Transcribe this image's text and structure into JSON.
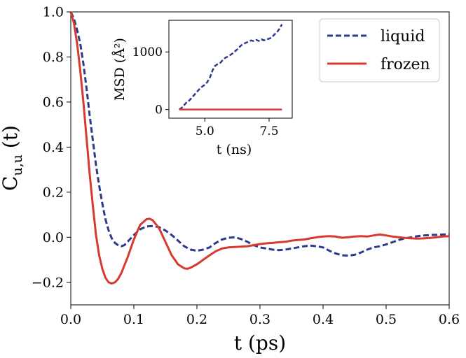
{
  "chart_data": {
    "type": "line",
    "xlabel": "t (ps)",
    "ylabel_main": "C",
    "ylabel_sub": "u,u",
    "ylabel_tail": " (t)",
    "xlim": [
      0.0,
      0.6
    ],
    "ylim": [
      -0.3,
      1.0
    ],
    "xticks": [
      0.0,
      0.1,
      0.2,
      0.3,
      0.4,
      0.5,
      0.6
    ],
    "xtick_labels": [
      "0.0",
      "0.1",
      "0.2",
      "0.3",
      "0.4",
      "0.5",
      "0.6"
    ],
    "yticks": [
      -0.2,
      0.0,
      0.2,
      0.4,
      0.6,
      0.8,
      1.0
    ],
    "ytick_labels": [
      "−0.2",
      "0.0",
      "0.2",
      "0.4",
      "0.6",
      "0.8",
      "1.0"
    ],
    "legend_position": "top-right",
    "series": [
      {
        "name": "liquid",
        "color": "#2e3a8c",
        "style": "dashed",
        "points": [
          [
            0.0,
            1.0
          ],
          [
            0.005,
            0.97
          ],
          [
            0.01,
            0.92
          ],
          [
            0.015,
            0.86
          ],
          [
            0.02,
            0.77
          ],
          [
            0.025,
            0.66
          ],
          [
            0.03,
            0.54
          ],
          [
            0.035,
            0.43
          ],
          [
            0.04,
            0.32
          ],
          [
            0.045,
            0.23
          ],
          [
            0.05,
            0.15
          ],
          [
            0.055,
            0.08
          ],
          [
            0.06,
            0.03
          ],
          [
            0.065,
            -0.005
          ],
          [
            0.07,
            -0.025
          ],
          [
            0.075,
            -0.035
          ],
          [
            0.08,
            -0.04
          ],
          [
            0.085,
            -0.035
          ],
          [
            0.09,
            -0.02
          ],
          [
            0.1,
            0.01
          ],
          [
            0.11,
            0.035
          ],
          [
            0.12,
            0.048
          ],
          [
            0.13,
            0.05
          ],
          [
            0.14,
            0.045
          ],
          [
            0.15,
            0.03
          ],
          [
            0.16,
            0.01
          ],
          [
            0.17,
            -0.015
          ],
          [
            0.18,
            -0.04
          ],
          [
            0.19,
            -0.055
          ],
          [
            0.2,
            -0.06
          ],
          [
            0.21,
            -0.055
          ],
          [
            0.22,
            -0.045
          ],
          [
            0.23,
            -0.025
          ],
          [
            0.24,
            -0.01
          ],
          [
            0.25,
            -0.002
          ],
          [
            0.26,
            0.0
          ],
          [
            0.27,
            -0.008
          ],
          [
            0.28,
            -0.02
          ],
          [
            0.29,
            -0.035
          ],
          [
            0.3,
            -0.045
          ],
          [
            0.31,
            -0.05
          ],
          [
            0.32,
            -0.055
          ],
          [
            0.33,
            -0.057
          ],
          [
            0.34,
            -0.055
          ],
          [
            0.35,
            -0.05
          ],
          [
            0.36,
            -0.045
          ],
          [
            0.37,
            -0.04
          ],
          [
            0.38,
            -0.037
          ],
          [
            0.39,
            -0.04
          ],
          [
            0.4,
            -0.045
          ],
          [
            0.41,
            -0.06
          ],
          [
            0.42,
            -0.072
          ],
          [
            0.43,
            -0.08
          ],
          [
            0.44,
            -0.082
          ],
          [
            0.45,
            -0.078
          ],
          [
            0.46,
            -0.068
          ],
          [
            0.47,
            -0.055
          ],
          [
            0.48,
            -0.045
          ],
          [
            0.49,
            -0.04
          ],
          [
            0.5,
            -0.032
          ],
          [
            0.51,
            -0.022
          ],
          [
            0.52,
            -0.012
          ],
          [
            0.53,
            -0.005
          ],
          [
            0.54,
            0.0
          ],
          [
            0.55,
            0.005
          ],
          [
            0.56,
            0.008
          ],
          [
            0.57,
            0.01
          ],
          [
            0.58,
            0.011
          ],
          [
            0.59,
            0.012
          ],
          [
            0.6,
            0.013
          ]
        ]
      },
      {
        "name": "frozen",
        "color": "#d63a2e",
        "style": "solid",
        "points": [
          [
            0.0,
            1.0
          ],
          [
            0.005,
            0.95
          ],
          [
            0.01,
            0.86
          ],
          [
            0.015,
            0.74
          ],
          [
            0.02,
            0.6
          ],
          [
            0.025,
            0.44
          ],
          [
            0.03,
            0.28
          ],
          [
            0.035,
            0.14
          ],
          [
            0.04,
            0.01
          ],
          [
            0.045,
            -0.08
          ],
          [
            0.05,
            -0.14
          ],
          [
            0.055,
            -0.18
          ],
          [
            0.06,
            -0.2
          ],
          [
            0.065,
            -0.205
          ],
          [
            0.07,
            -0.2
          ],
          [
            0.075,
            -0.185
          ],
          [
            0.08,
            -0.16
          ],
          [
            0.09,
            -0.09
          ],
          [
            0.1,
            -0.01
          ],
          [
            0.11,
            0.055
          ],
          [
            0.12,
            0.08
          ],
          [
            0.125,
            0.082
          ],
          [
            0.13,
            0.075
          ],
          [
            0.14,
            0.04
          ],
          [
            0.15,
            -0.02
          ],
          [
            0.16,
            -0.08
          ],
          [
            0.17,
            -0.12
          ],
          [
            0.18,
            -0.138
          ],
          [
            0.185,
            -0.14
          ],
          [
            0.19,
            -0.135
          ],
          [
            0.2,
            -0.12
          ],
          [
            0.21,
            -0.1
          ],
          [
            0.22,
            -0.08
          ],
          [
            0.23,
            -0.062
          ],
          [
            0.24,
            -0.05
          ],
          [
            0.25,
            -0.045
          ],
          [
            0.26,
            -0.043
          ],
          [
            0.27,
            -0.042
          ],
          [
            0.28,
            -0.04
          ],
          [
            0.29,
            -0.035
          ],
          [
            0.3,
            -0.03
          ],
          [
            0.31,
            -0.027
          ],
          [
            0.32,
            -0.025
          ],
          [
            0.33,
            -0.022
          ],
          [
            0.34,
            -0.02
          ],
          [
            0.35,
            -0.015
          ],
          [
            0.36,
            -0.012
          ],
          [
            0.37,
            -0.01
          ],
          [
            0.38,
            -0.005
          ],
          [
            0.39,
            0.0
          ],
          [
            0.4,
            0.003
          ],
          [
            0.41,
            0.005
          ],
          [
            0.42,
            0.003
          ],
          [
            0.43,
            -0.002
          ],
          [
            0.44,
            0.0
          ],
          [
            0.45,
            0.003
          ],
          [
            0.46,
            0.005
          ],
          [
            0.47,
            0.003
          ],
          [
            0.48,
            0.008
          ],
          [
            0.49,
            0.012
          ],
          [
            0.5,
            0.008
          ],
          [
            0.51,
            0.003
          ],
          [
            0.52,
            0.0
          ],
          [
            0.53,
            -0.003
          ],
          [
            0.54,
            -0.005
          ],
          [
            0.55,
            -0.006
          ],
          [
            0.56,
            -0.005
          ],
          [
            0.57,
            -0.003
          ],
          [
            0.58,
            0.0
          ],
          [
            0.59,
            0.003
          ],
          [
            0.6,
            0.005
          ]
        ]
      }
    ],
    "inset": {
      "xlabel": "t (ns)",
      "ylabel": "MSD (Å²)",
      "xlim": [
        3.6,
        8.4
      ],
      "ylim": [
        -150,
        1550
      ],
      "xticks": [
        5.0,
        7.5
      ],
      "xtick_labels": [
        "5.0",
        "7.5"
      ],
      "yticks": [
        0,
        1000
      ],
      "ytick_labels": [
        "0",
        "1000"
      ],
      "series": [
        {
          "name": "liquid",
          "color": "#2e3a8c",
          "style": "dashed",
          "points": [
            [
              4.0,
              0
            ],
            [
              4.1,
              30
            ],
            [
              4.2,
              80
            ],
            [
              4.3,
              130
            ],
            [
              4.4,
              160
            ],
            [
              4.5,
              210
            ],
            [
              4.6,
              260
            ],
            [
              4.7,
              310
            ],
            [
              4.8,
              360
            ],
            [
              4.9,
              400
            ],
            [
              5.0,
              430
            ],
            [
              5.1,
              480
            ],
            [
              5.2,
              560
            ],
            [
              5.3,
              680
            ],
            [
              5.4,
              760
            ],
            [
              5.5,
              790
            ],
            [
              5.6,
              810
            ],
            [
              5.7,
              860
            ],
            [
              5.8,
              900
            ],
            [
              5.9,
              920
            ],
            [
              6.0,
              950
            ],
            [
              6.1,
              980
            ],
            [
              6.2,
              1020
            ],
            [
              6.3,
              1060
            ],
            [
              6.4,
              1110
            ],
            [
              6.5,
              1140
            ],
            [
              6.6,
              1160
            ],
            [
              6.7,
              1180
            ],
            [
              6.8,
              1200
            ],
            [
              6.9,
              1190
            ],
            [
              7.0,
              1210
            ],
            [
              7.1,
              1190
            ],
            [
              7.2,
              1220
            ],
            [
              7.3,
              1200
            ],
            [
              7.4,
              1220
            ],
            [
              7.5,
              1230
            ],
            [
              7.6,
              1250
            ],
            [
              7.7,
              1300
            ],
            [
              7.8,
              1340
            ],
            [
              7.9,
              1400
            ],
            [
              8.0,
              1480
            ]
          ]
        },
        {
          "name": "frozen",
          "color": "#d63a2e",
          "style": "solid",
          "points": [
            [
              4.0,
              0
            ],
            [
              8.0,
              0
            ]
          ]
        }
      ]
    }
  }
}
